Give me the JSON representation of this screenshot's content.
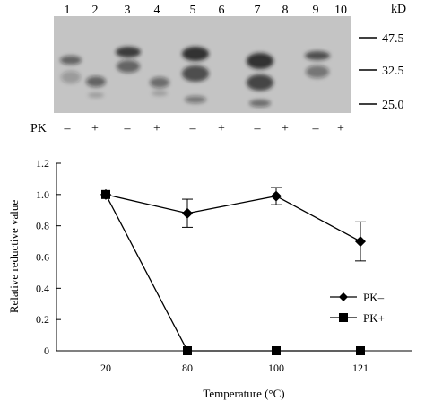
{
  "blot": {
    "lane_numbers": [
      "1",
      "2",
      "3",
      "4",
      "5",
      "6",
      "7",
      "8",
      "9",
      "10"
    ],
    "unit_label": "kD",
    "markers": [
      "47.5",
      "32.5",
      "25.0"
    ],
    "pk_label": "PK",
    "pk_signs": [
      "–",
      "+",
      "–",
      "+",
      "–",
      "+",
      "–",
      "+",
      "–",
      "+"
    ]
  },
  "chart_data": {
    "type": "line",
    "categories": [
      "20",
      "80",
      "100",
      "121"
    ],
    "xlabel": "Temperature (°C)",
    "ylabel": "Relative reductive value",
    "ylim": [
      0,
      1.2
    ],
    "yticks": [
      "0",
      "0.2",
      "0.4",
      "0.6",
      "0.8",
      "1.0",
      "1.2"
    ],
    "legend_position": "bottom-right",
    "series": [
      {
        "name": "PK–",
        "marker": "diamond",
        "values": [
          1.0,
          0.88,
          0.99,
          0.7
        ],
        "error": [
          0,
          0.09,
          0.055,
          0.125
        ]
      },
      {
        "name": "PK+",
        "marker": "square",
        "values": [
          1.0,
          0.0,
          0.0,
          0.0
        ],
        "error": [
          0,
          0,
          0,
          0
        ]
      }
    ]
  }
}
